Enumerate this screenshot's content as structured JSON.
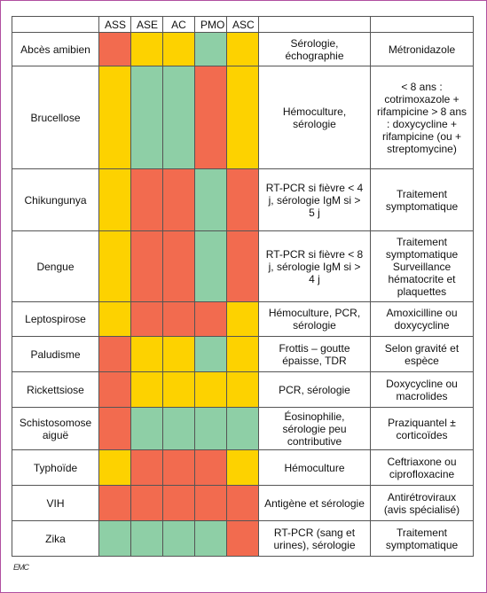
{
  "table": {
    "header": [
      "",
      "ASS",
      "ASE",
      "AC",
      "PMO",
      "ASC",
      "",
      ""
    ],
    "rows": [
      {
        "name": "Abcès amibien",
        "colors": [
          "#f26b4f",
          "#fdd200",
          "#fdd200",
          "#8ecfa6",
          "#fdd200"
        ],
        "test": "Sérologie, échographie",
        "treatment": "Métronidazole"
      },
      {
        "name": "Brucellose",
        "colors": [
          "#fdd200",
          "#8ecfa6",
          "#8ecfa6",
          "#f26b4f",
          "#fdd200"
        ],
        "test": "Hémoculture, sérologie",
        "treatment": "< 8 ans : cotrimoxazole + rifampicine > 8 ans : doxycycline + rifampicine (ou + streptomycine)"
      },
      {
        "name": "Chikungunya",
        "colors": [
          "#fdd200",
          "#f26b4f",
          "#f26b4f",
          "#8ecfa6",
          "#f26b4f"
        ],
        "test": "RT-PCR si fièvre < 4 j, sérologie IgM si > 5 j",
        "treatment": "Traitement symptomatique"
      },
      {
        "name": "Dengue",
        "colors": [
          "#fdd200",
          "#f26b4f",
          "#f26b4f",
          "#8ecfa6",
          "#f26b4f"
        ],
        "test": "RT-PCR si fièvre < 8 j, sérologie IgM si > 4 j",
        "treatment": "Traitement symptomatique Surveillance hématocrite et plaquettes"
      },
      {
        "name": "Leptospirose",
        "colors": [
          "#fdd200",
          "#f26b4f",
          "#f26b4f",
          "#f26b4f",
          "#fdd200"
        ],
        "test": "Hémoculture, PCR, sérologie",
        "treatment": "Amoxicilline ou doxycycline"
      },
      {
        "name": "Paludisme",
        "colors": [
          "#f26b4f",
          "#fdd200",
          "#fdd200",
          "#8ecfa6",
          "#fdd200"
        ],
        "test": "Frottis – goutte épaisse, TDR",
        "treatment": "Selon gravité et espèce"
      },
      {
        "name": "Rickettsiose",
        "colors": [
          "#f26b4f",
          "#fdd200",
          "#fdd200",
          "#fdd200",
          "#fdd200"
        ],
        "test": "PCR, sérologie",
        "treatment": "Doxycycline ou macrolides"
      },
      {
        "name": "Schistosomose aiguë",
        "colors": [
          "#f26b4f",
          "#8ecfa6",
          "#8ecfa6",
          "#8ecfa6",
          "#8ecfa6"
        ],
        "test": "Éosinophilie, sérologie peu contributive",
        "treatment": "Praziquantel ± corticoïdes"
      },
      {
        "name": "Typhoïde",
        "colors": [
          "#fdd200",
          "#f26b4f",
          "#f26b4f",
          "#f26b4f",
          "#fdd200"
        ],
        "test": "Hémoculture",
        "treatment": "Ceftriaxone ou ciprofloxacine"
      },
      {
        "name": "VIH",
        "colors": [
          "#f26b4f",
          "#f26b4f",
          "#f26b4f",
          "#f26b4f",
          "#f26b4f"
        ],
        "test": "Antigène et sérologie",
        "treatment": "Antirétroviraux (avis spécialisé)"
      },
      {
        "name": "Zika",
        "colors": [
          "#8ecfa6",
          "#8ecfa6",
          "#8ecfa6",
          "#8ecfa6",
          "#f26b4f"
        ],
        "test": "RT-PCR (sang et urines), sérologie",
        "treatment": "Traitement symptomatique"
      }
    ]
  },
  "footer": {
    "logo": "EMC"
  }
}
